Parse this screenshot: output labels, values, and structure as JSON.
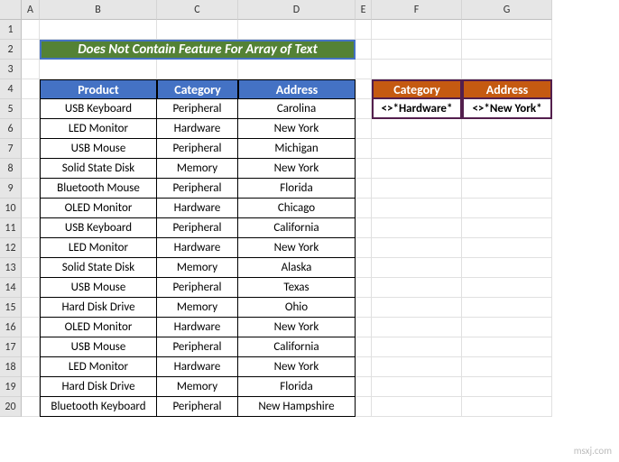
{
  "columns": [
    "A",
    "B",
    "C",
    "D",
    "E",
    "F",
    "G"
  ],
  "rows": [
    "1",
    "2",
    "3",
    "4",
    "5",
    "6",
    "7",
    "8",
    "9",
    "10",
    "11",
    "12",
    "13",
    "14",
    "15",
    "16",
    "17",
    "18",
    "19",
    "20"
  ],
  "title": "Does Not Contain Feature For Array of Text",
  "main": {
    "headers": [
      "Product",
      "Category",
      "Address"
    ],
    "data": [
      [
        "USB Keyboard",
        "Peripheral",
        "Carolina"
      ],
      [
        "LED Monitor",
        "Hardware",
        "New York"
      ],
      [
        "USB Mouse",
        "Peripheral",
        "Michigan"
      ],
      [
        "Solid State Disk",
        "Memory",
        "New York"
      ],
      [
        "Bluetooth Mouse",
        "Peripheral",
        "Florida"
      ],
      [
        "OLED Monitor",
        "Hardware",
        "Chicago"
      ],
      [
        "USB Keyboard",
        "Peripheral",
        "California"
      ],
      [
        "LED Monitor",
        "Hardware",
        "New York"
      ],
      [
        "Solid State Disk",
        "Memory",
        "Alaska"
      ],
      [
        "USB Mouse",
        "Peripheral",
        "Texas"
      ],
      [
        "Hard Disk Drive",
        "Memory",
        "Ohio"
      ],
      [
        "OLED Monitor",
        "Hardware",
        "New York"
      ],
      [
        "USB Mouse",
        "Peripheral",
        "California"
      ],
      [
        "LED Monitor",
        "Hardware",
        "New York"
      ],
      [
        "Hard Disk Drive",
        "Memory",
        "Florida"
      ],
      [
        "Bluetooth Keyboard",
        "Peripheral",
        "New Hampshire"
      ]
    ]
  },
  "filter": {
    "headers": [
      "Category",
      "Address"
    ],
    "values": [
      "<>*Hardware*",
      "<>*New York*"
    ]
  },
  "watermark": "msxj.com",
  "colors": {
    "title_bg": "#548235",
    "title_border": "#4472c4",
    "main_header_bg": "#4472c4",
    "filter_header_bg": "#c55a11",
    "filter_border": "#531f4d"
  }
}
